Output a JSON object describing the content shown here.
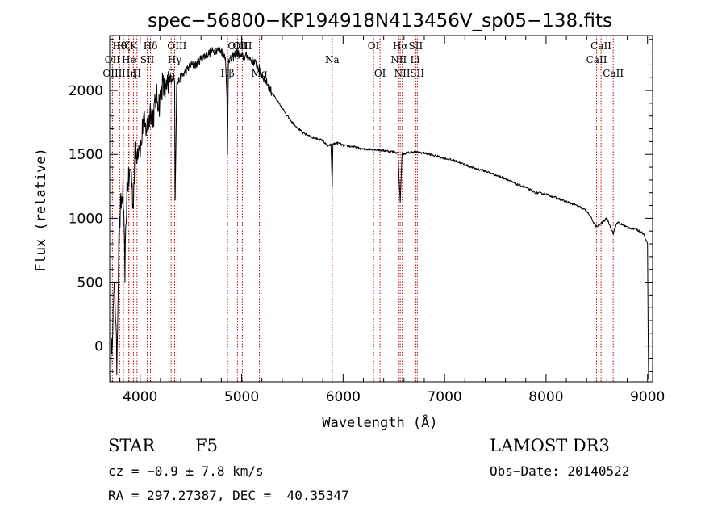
{
  "chart_data": {
    "type": "line",
    "title": "spec−56800−KP194918N413456V_sp05−138.fits",
    "xlabel": "Wavelength (Å)",
    "ylabel": "Flux (relative)",
    "xlim": [
      3700,
      9050
    ],
    "ylim": [
      -280,
      2430
    ],
    "x_ticks": [
      4000,
      5000,
      6000,
      7000,
      8000,
      9000
    ],
    "y_ticks": [
      0,
      500,
      1000,
      1500,
      2000
    ],
    "grid": false,
    "series": [
      {
        "name": "spectrum",
        "x": [
          3710,
          3730,
          3750,
          3770,
          3790,
          3810,
          3830,
          3850,
          3870,
          3890,
          3910,
          3930,
          3950,
          3970,
          3990,
          4010,
          4030,
          4050,
          4080,
          4100,
          4130,
          4160,
          4190,
          4220,
          4250,
          4280,
          4310,
          4340,
          4345,
          4360,
          4400,
          4450,
          4500,
          4550,
          4600,
          4650,
          4700,
          4750,
          4800,
          4840,
          4855,
          4861,
          4870,
          4900,
          4950,
          5000,
          5050,
          5100,
          5150,
          5200,
          5250,
          5300,
          5400,
          5500,
          5600,
          5700,
          5800,
          5850,
          5880,
          5893,
          5900,
          5950,
          6000,
          6100,
          6200,
          6300,
          6400,
          6500,
          6540,
          6563,
          6580,
          6620,
          6700,
          6800,
          6900,
          7000,
          7100,
          7200,
          7300,
          7400,
          7500,
          7600,
          7700,
          7800,
          7900,
          8000,
          8100,
          8200,
          8300,
          8400,
          8498,
          8542,
          8600,
          8662,
          8700,
          8800,
          8900,
          8960,
          9000,
          9010
        ],
        "y": [
          -200,
          200,
          500,
          -150,
          800,
          1100,
          1200,
          600,
          1250,
          1300,
          1400,
          1100,
          1500,
          1520,
          1600,
          1550,
          1780,
          1700,
          1720,
          1850,
          1800,
          1950,
          1900,
          2050,
          1980,
          2050,
          2100,
          2080,
          1150,
          2050,
          2100,
          2150,
          2200,
          2200,
          2250,
          2280,
          2300,
          2320,
          2310,
          2270,
          1950,
          1500,
          2250,
          2240,
          2300,
          2260,
          2270,
          2240,
          2200,
          2120,
          2060,
          1980,
          1860,
          1750,
          1670,
          1630,
          1610,
          1560,
          1580,
          1250,
          1580,
          1590,
          1570,
          1560,
          1540,
          1540,
          1530,
          1520,
          1510,
          1120,
          1500,
          1510,
          1520,
          1510,
          1490,
          1470,
          1450,
          1420,
          1390,
          1370,
          1340,
          1310,
          1270,
          1240,
          1200,
          1190,
          1160,
          1130,
          1100,
          1060,
          930,
          960,
          1000,
          880,
          970,
          930,
          910,
          880,
          800,
          -260
        ]
      }
    ],
    "spectral_lines": [
      {
        "label": "Hθ",
        "x": 3798,
        "row": 0
      },
      {
        "label": "OII",
        "x": 3727,
        "row": 1
      },
      {
        "label": "OIII",
        "x": 3727,
        "row": 2
      },
      {
        "label": "Hζ",
        "x": 3835,
        "row": 0
      },
      {
        "label": "He",
        "x": 3889,
        "row": 1
      },
      {
        "label": "Hη",
        "x": 3889,
        "row": 2
      },
      {
        "label": "K",
        "x": 3934,
        "row": 0
      },
      {
        "label": "SII",
        "x": 4070,
        "row": 1
      },
      {
        "label": "H",
        "x": 3969,
        "row": 2
      },
      {
        "label": "Hδ",
        "x": 4102,
        "row": 0
      },
      {
        "label": "OIII",
        "x": 4363,
        "row": 0
      },
      {
        "label": "Hγ",
        "x": 4340,
        "row": 1
      },
      {
        "label": "G",
        "x": 4305,
        "row": 2
      },
      {
        "label": "Hβ",
        "x": 4861,
        "row": 2
      },
      {
        "label": "OIII",
        "x": 4959,
        "row": 0
      },
      {
        "label": "OIII",
        "x": 5007,
        "row": 0
      },
      {
        "label": "Mg",
        "x": 5175,
        "row": 2
      },
      {
        "label": "Na",
        "x": 5893,
        "row": 1
      },
      {
        "label": "OI",
        "x": 6300,
        "row": 0
      },
      {
        "label": "OI",
        "x": 6364,
        "row": 2
      },
      {
        "label": "Hα",
        "x": 6563,
        "row": 0
      },
      {
        "label": "NII",
        "x": 6548,
        "row": 1
      },
      {
        "label": "NII",
        "x": 6583,
        "row": 2
      },
      {
        "label": "SII",
        "x": 6716,
        "row": 0
      },
      {
        "label": "Li",
        "x": 6708,
        "row": 1
      },
      {
        "label": "SII",
        "x": 6731,
        "row": 2
      },
      {
        "label": "CaII",
        "x": 8542,
        "row": 0
      },
      {
        "label": "CaII",
        "x": 8498,
        "row": 1
      },
      {
        "label": "CaII",
        "x": 8662,
        "row": 2
      }
    ]
  },
  "info": {
    "object_class": "STAR",
    "subclass": "F5",
    "survey": "LAMOST DR3",
    "cz": "cz = −0.9 ± 7.8 km/s",
    "obs_date": "Obs−Date: 20140522",
    "coords": "RA = 297.27387, DEC =  40.35347"
  },
  "colors": {
    "line_marker": "#c00000",
    "spectrum": "#000000"
  }
}
